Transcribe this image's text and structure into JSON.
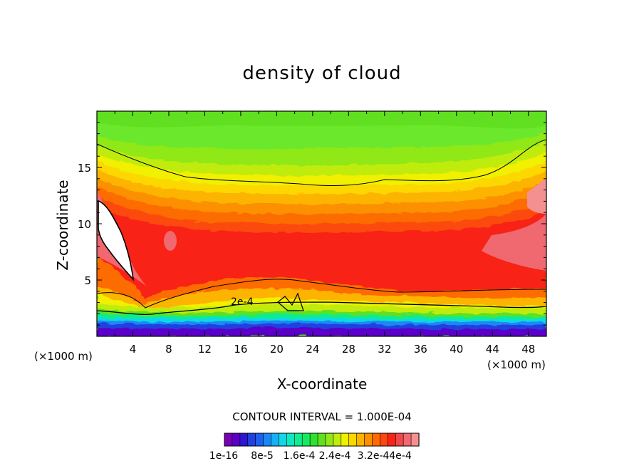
{
  "chart_data": {
    "type": "contour",
    "title": "density of cloud",
    "xlabel": "X-coordinate",
    "ylabel": "Z-coordinate",
    "x_unit_left": "(×1000 m)",
    "x_unit_right": "(×1000 m)",
    "xlim": [
      0,
      50
    ],
    "ylim": [
      0,
      20
    ],
    "x_ticks": [
      "4",
      "8",
      "12",
      "16",
      "20",
      "24",
      "28",
      "32",
      "36",
      "40",
      "44",
      "48"
    ],
    "y_ticks": [
      "5",
      "10",
      "15"
    ],
    "contour_interval_text": "CONTOUR INTERVAL = 1.000E-04",
    "contour_label": "2e-4",
    "colorbar": {
      "labels": [
        "1e-16",
        "8e-5",
        "1.6e-4",
        "2.4e-4",
        "3.2e-4",
        "4e-4"
      ],
      "colors": [
        "#7a00b4",
        "#5a00c8",
        "#2c16d0",
        "#2040e0",
        "#1c60ec",
        "#1a88f4",
        "#18b0f4",
        "#10d8e8",
        "#10e8c0",
        "#10ec90",
        "#18e860",
        "#30e030",
        "#60e020",
        "#90e818",
        "#c0ec10",
        "#f0f000",
        "#fcd800",
        "#fcb400",
        "#fc9000",
        "#fc6c00",
        "#fc4810",
        "#f82418",
        "#f04848",
        "#f06870",
        "#f49090"
      ]
    },
    "grid": false,
    "legend": "colorbar-bottom"
  }
}
